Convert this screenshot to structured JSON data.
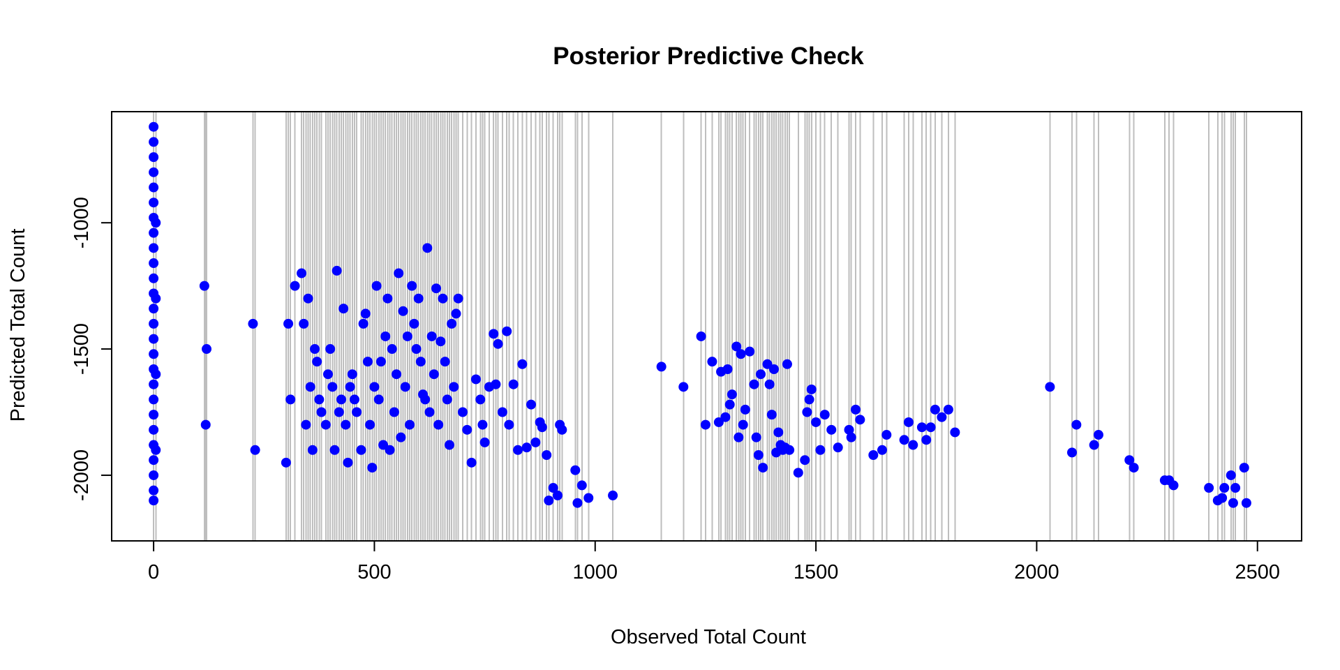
{
  "chart_data": {
    "type": "scatter",
    "title": "Posterior Predictive Check",
    "xlabel": "Observed Total Count",
    "ylabel": "Predicted Total Count",
    "xlim": [
      -95,
      2600
    ],
    "ylim": [
      -2260,
      -560
    ],
    "x_ticks": [
      0,
      500,
      1000,
      1500,
      2000,
      2500
    ],
    "x_tick_labels": [
      "0",
      "500",
      "1000",
      "1500",
      "2000",
      "2500"
    ],
    "y_ticks": [
      -2000,
      -1500,
      -1000
    ],
    "y_tick_labels": [
      "-2000",
      "-1500",
      "-1000"
    ],
    "grid": false,
    "legend": "none",
    "colors": {
      "points": "#0000ff",
      "intervals": "#bebebe",
      "frame": "#000000"
    },
    "series": [
      {
        "values": [
          [
            0,
            -620
          ],
          [
            0,
            -680
          ],
          [
            0,
            -740
          ],
          [
            0,
            -800
          ],
          [
            0,
            -860
          ],
          [
            0,
            -920
          ],
          [
            0,
            -980
          ],
          [
            0,
            -1040
          ],
          [
            0,
            -1100
          ],
          [
            0,
            -1160
          ],
          [
            0,
            -1220
          ],
          [
            0,
            -1280
          ],
          [
            0,
            -1340
          ],
          [
            0,
            -1400
          ],
          [
            0,
            -1460
          ],
          [
            0,
            -1520
          ],
          [
            0,
            -1580
          ],
          [
            0,
            -1640
          ],
          [
            0,
            -1700
          ],
          [
            0,
            -1760
          ],
          [
            0,
            -1820
          ],
          [
            0,
            -1880
          ],
          [
            0,
            -1940
          ],
          [
            0,
            -2000
          ],
          [
            0,
            -2060
          ],
          [
            0,
            -2100
          ],
          [
            5,
            -1000
          ],
          [
            5,
            -1300
          ],
          [
            5,
            -1600
          ],
          [
            5,
            -1900
          ],
          [
            115,
            -1250
          ],
          [
            118,
            -1800
          ],
          [
            120,
            -1500
          ],
          [
            225,
            -1400
          ],
          [
            230,
            -1900
          ],
          [
            300,
            -1950
          ],
          [
            305,
            -1400
          ],
          [
            310,
            -1700
          ],
          [
            320,
            -1250
          ],
          [
            335,
            -1200
          ],
          [
            340,
            -1400
          ],
          [
            345,
            -1800
          ],
          [
            350,
            -1300
          ],
          [
            355,
            -1650
          ],
          [
            360,
            -1900
          ],
          [
            365,
            -1500
          ],
          [
            370,
            -1550
          ],
          [
            375,
            -1700
          ],
          [
            380,
            -1750
          ],
          [
            390,
            -1800
          ],
          [
            395,
            -1600
          ],
          [
            400,
            -1500
          ],
          [
            405,
            -1650
          ],
          [
            410,
            -1900
          ],
          [
            415,
            -1190
          ],
          [
            420,
            -1750
          ],
          [
            425,
            -1700
          ],
          [
            430,
            -1340
          ],
          [
            435,
            -1800
          ],
          [
            440,
            -1950
          ],
          [
            445,
            -1650
          ],
          [
            450,
            -1600
          ],
          [
            455,
            -1700
          ],
          [
            460,
            -1750
          ],
          [
            470,
            -1900
          ],
          [
            475,
            -1400
          ],
          [
            480,
            -1360
          ],
          [
            485,
            -1550
          ],
          [
            490,
            -1800
          ],
          [
            495,
            -1970
          ],
          [
            500,
            -1650
          ],
          [
            505,
            -1250
          ],
          [
            510,
            -1700
          ],
          [
            515,
            -1550
          ],
          [
            520,
            -1880
          ],
          [
            525,
            -1450
          ],
          [
            530,
            -1300
          ],
          [
            535,
            -1900
          ],
          [
            540,
            -1500
          ],
          [
            545,
            -1750
          ],
          [
            550,
            -1600
          ],
          [
            555,
            -1200
          ],
          [
            560,
            -1850
          ],
          [
            565,
            -1350
          ],
          [
            570,
            -1650
          ],
          [
            575,
            -1450
          ],
          [
            580,
            -1800
          ],
          [
            585,
            -1250
          ],
          [
            590,
            -1400
          ],
          [
            595,
            -1500
          ],
          [
            600,
            -1300
          ],
          [
            605,
            -1550
          ],
          [
            610,
            -1680
          ],
          [
            615,
            -1700
          ],
          [
            620,
            -1100
          ],
          [
            625,
            -1750
          ],
          [
            630,
            -1450
          ],
          [
            635,
            -1600
          ],
          [
            640,
            -1260
          ],
          [
            645,
            -1800
          ],
          [
            650,
            -1470
          ],
          [
            655,
            -1300
          ],
          [
            660,
            -1550
          ],
          [
            665,
            -1700
          ],
          [
            670,
            -1880
          ],
          [
            675,
            -1400
          ],
          [
            680,
            -1650
          ],
          [
            685,
            -1360
          ],
          [
            690,
            -1300
          ],
          [
            700,
            -1750
          ],
          [
            710,
            -1820
          ],
          [
            720,
            -1950
          ],
          [
            730,
            -1620
          ],
          [
            740,
            -1700
          ],
          [
            745,
            -1800
          ],
          [
            750,
            -1870
          ],
          [
            760,
            -1650
          ],
          [
            770,
            -1440
          ],
          [
            775,
            -1640
          ],
          [
            780,
            -1480
          ],
          [
            790,
            -1750
          ],
          [
            800,
            -1430
          ],
          [
            805,
            -1800
          ],
          [
            815,
            -1640
          ],
          [
            825,
            -1900
          ],
          [
            835,
            -1560
          ],
          [
            845,
            -1890
          ],
          [
            855,
            -1720
          ],
          [
            865,
            -1870
          ],
          [
            875,
            -1790
          ],
          [
            880,
            -1810
          ],
          [
            890,
            -1920
          ],
          [
            895,
            -2100
          ],
          [
            905,
            -2050
          ],
          [
            915,
            -2080
          ],
          [
            920,
            -1800
          ],
          [
            925,
            -1820
          ],
          [
            955,
            -1980
          ],
          [
            960,
            -2110
          ],
          [
            970,
            -2040
          ],
          [
            985,
            -2090
          ],
          [
            1040,
            -2080
          ],
          [
            1150,
            -1570
          ],
          [
            1200,
            -1650
          ],
          [
            1240,
            -1450
          ],
          [
            1250,
            -1800
          ],
          [
            1265,
            -1550
          ],
          [
            1280,
            -1790
          ],
          [
            1285,
            -1590
          ],
          [
            1295,
            -1770
          ],
          [
            1300,
            -1580
          ],
          [
            1305,
            -1720
          ],
          [
            1310,
            -1680
          ],
          [
            1320,
            -1490
          ],
          [
            1325,
            -1850
          ],
          [
            1330,
            -1520
          ],
          [
            1335,
            -1800
          ],
          [
            1340,
            -1740
          ],
          [
            1350,
            -1510
          ],
          [
            1360,
            -1640
          ],
          [
            1365,
            -1850
          ],
          [
            1370,
            -1920
          ],
          [
            1375,
            -1600
          ],
          [
            1380,
            -1970
          ],
          [
            1390,
            -1560
          ],
          [
            1395,
            -1640
          ],
          [
            1400,
            -1760
          ],
          [
            1405,
            -1580
          ],
          [
            1410,
            -1910
          ],
          [
            1415,
            -1830
          ],
          [
            1420,
            -1880
          ],
          [
            1425,
            -1900
          ],
          [
            1430,
            -1890
          ],
          [
            1435,
            -1560
          ],
          [
            1440,
            -1900
          ],
          [
            1460,
            -1990
          ],
          [
            1475,
            -1940
          ],
          [
            1480,
            -1750
          ],
          [
            1485,
            -1700
          ],
          [
            1490,
            -1660
          ],
          [
            1500,
            -1790
          ],
          [
            1510,
            -1900
          ],
          [
            1520,
            -1760
          ],
          [
            1535,
            -1820
          ],
          [
            1550,
            -1890
          ],
          [
            1575,
            -1820
          ],
          [
            1580,
            -1850
          ],
          [
            1590,
            -1740
          ],
          [
            1600,
            -1780
          ],
          [
            1630,
            -1920
          ],
          [
            1650,
            -1900
          ],
          [
            1660,
            -1840
          ],
          [
            1700,
            -1860
          ],
          [
            1710,
            -1790
          ],
          [
            1720,
            -1880
          ],
          [
            1740,
            -1810
          ],
          [
            1750,
            -1860
          ],
          [
            1760,
            -1810
          ],
          [
            1770,
            -1740
          ],
          [
            1785,
            -1770
          ],
          [
            1800,
            -1740
          ],
          [
            1815,
            -1830
          ],
          [
            2030,
            -1650
          ],
          [
            2080,
            -1910
          ],
          [
            2090,
            -1800
          ],
          [
            2130,
            -1880
          ],
          [
            2140,
            -1840
          ],
          [
            2210,
            -1940
          ],
          [
            2220,
            -1970
          ],
          [
            2290,
            -2020
          ],
          [
            2300,
            -2020
          ],
          [
            2310,
            -2040
          ],
          [
            2390,
            -2050
          ],
          [
            2410,
            -2100
          ],
          [
            2420,
            -2090
          ],
          [
            2425,
            -2050
          ],
          [
            2440,
            -2000
          ],
          [
            2445,
            -2110
          ],
          [
            2450,
            -2050
          ],
          [
            2470,
            -1970
          ],
          [
            2475,
            -2110
          ]
        ]
      }
    ]
  }
}
